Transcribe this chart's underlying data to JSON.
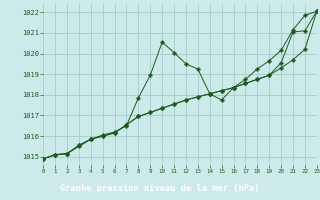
{
  "title": "Graphe pression niveau de la mer (hPa)",
  "bg_color": "#cceaea",
  "grid_color": "#aacfcf",
  "label_bg": "#2d6e2d",
  "line_color": "#1a5c1a",
  "xlim": [
    0,
    23
  ],
  "ylim": [
    1014.6,
    1022.4
  ],
  "yticks": [
    1015,
    1016,
    1017,
    1018,
    1019,
    1020,
    1021,
    1022
  ],
  "xticks": [
    0,
    1,
    2,
    3,
    4,
    5,
    6,
    7,
    8,
    9,
    10,
    11,
    12,
    13,
    14,
    15,
    16,
    17,
    18,
    19,
    20,
    21,
    22,
    23
  ],
  "series1": [
    1014.9,
    1015.1,
    1015.15,
    1015.5,
    1015.85,
    1016.05,
    1016.2,
    1016.5,
    1017.85,
    1018.95,
    1020.55,
    1020.05,
    1019.5,
    1019.25,
    1018.05,
    1017.75,
    1018.35,
    1018.75,
    1019.25,
    1019.65,
    1020.15,
    1021.15,
    1021.85,
    1022.05
  ],
  "series2": [
    1014.9,
    1015.1,
    1015.15,
    1015.55,
    1015.85,
    1016.0,
    1016.15,
    1016.55,
    1016.95,
    1017.15,
    1017.35,
    1017.55,
    1017.75,
    1017.9,
    1018.05,
    1018.2,
    1018.35,
    1018.55,
    1018.75,
    1018.95,
    1019.3,
    1019.7,
    1020.2,
    1022.05
  ],
  "series3": [
    1014.9,
    1015.1,
    1015.15,
    1015.55,
    1015.85,
    1016.0,
    1016.15,
    1016.55,
    1016.95,
    1017.15,
    1017.35,
    1017.55,
    1017.75,
    1017.9,
    1018.05,
    1018.2,
    1018.35,
    1018.55,
    1018.75,
    1018.95,
    1019.55,
    1021.05,
    1021.1,
    1022.05
  ]
}
